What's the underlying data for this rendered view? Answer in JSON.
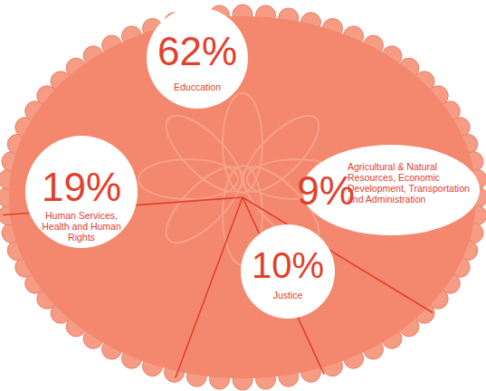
{
  "chart_data": {
    "type": "pie",
    "categories": [
      "Educcation",
      "Agricultural & Natural Resources, Economic Development, Transportation and Administration",
      "Justice",
      "Human Services, Health and Human Rights"
    ],
    "values": [
      62,
      9,
      10,
      19
    ],
    "value_labels": [
      "62%",
      "9%",
      "10%",
      "19%"
    ],
    "data_labels": true,
    "color": "#f4886e"
  }
}
